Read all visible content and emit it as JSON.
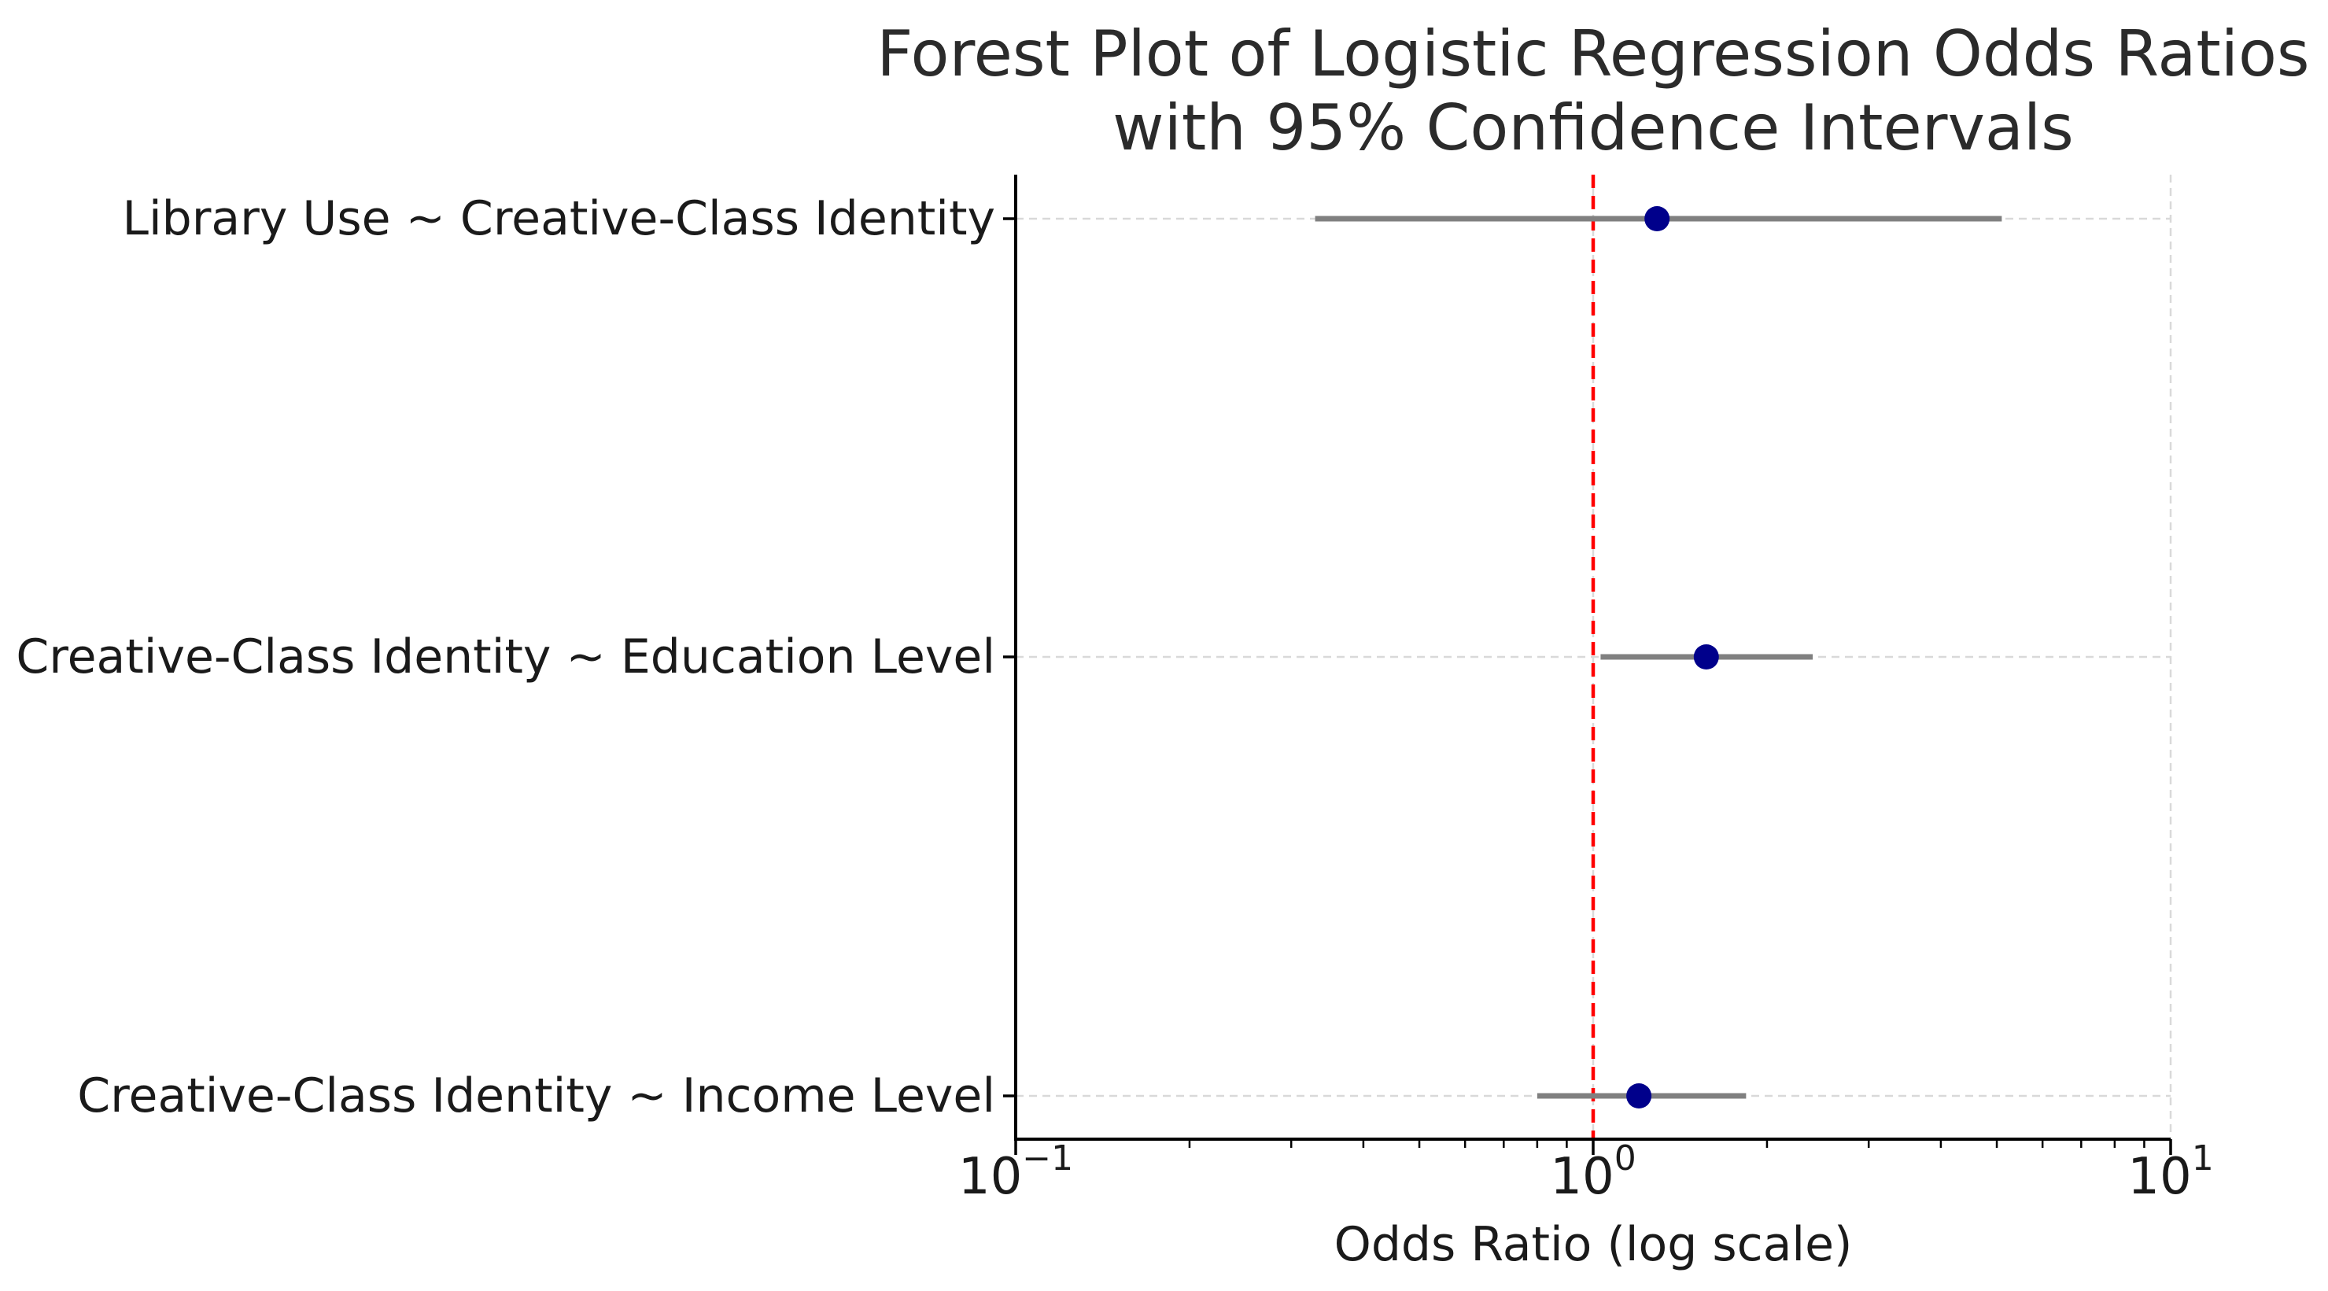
{
  "chart_data": {
    "type": "scatter",
    "subtype": "forest-plot",
    "title": [
      "Forest Plot of Logistic Regression Odds Ratios",
      "with 95% Confidence Intervals"
    ],
    "xlabel": "Odds Ratio (log scale)",
    "ylabel": "",
    "xscale": "log",
    "xlim": [
      0.1,
      10
    ],
    "x_ticks": [
      {
        "base": "10",
        "exp": "−1",
        "value": 0.1
      },
      {
        "base": "10",
        "exp": "0",
        "value": 1
      },
      {
        "base": "10",
        "exp": "1",
        "value": 10
      }
    ],
    "reference_line": {
      "x": 1,
      "style": "dashed",
      "color": "#ff0000"
    },
    "grid": true,
    "rows": [
      {
        "label": "Library Use ~ Creative-Class Identity",
        "odds_ratio": 1.29,
        "ci": [
          0.33,
          5.1
        ]
      },
      {
        "label": "Creative-Class Identity ~ Education Level",
        "odds_ratio": 1.57,
        "ci": [
          1.03,
          2.4
        ]
      },
      {
        "label": "Creative-Class Identity ~ Income Level",
        "odds_ratio": 1.2,
        "ci": [
          0.8,
          1.84
        ]
      }
    ],
    "colors": {
      "point": "#00008b",
      "ci_line": "#808080",
      "reference": "#ff0000",
      "grid": "#d9d9d9",
      "axis": "#000000"
    }
  }
}
